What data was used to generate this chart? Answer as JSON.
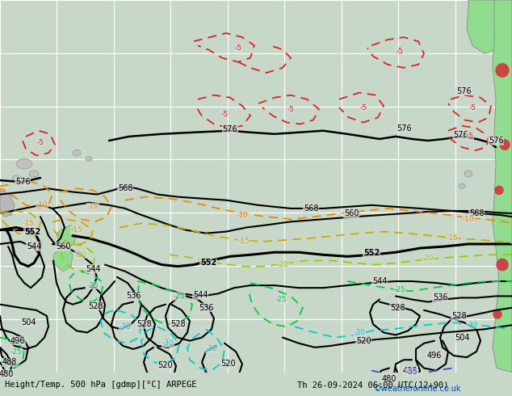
{
  "bottom_label": "Height/Temp. 500 hPa [gdmp][°C] ARPEGE",
  "bottom_right": "Th 26-09-2024 06:00 UTC(12+90)",
  "credit": "©weatheronline.co.uk",
  "bg_color": "#d8d8d8",
  "grid_color": "#ffffff",
  "temp_colors": {
    "-5": "#dd2222",
    "-10": "#ee8800",
    "-15": "#ccaa00",
    "-20": "#99cc00",
    "-25": "#00cc44",
    "-30": "#00cccc",
    "-35": "#4444dd"
  }
}
